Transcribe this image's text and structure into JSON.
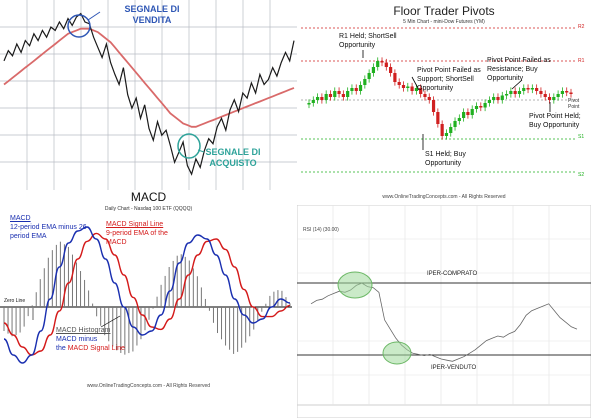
{
  "colors": {
    "price": "#1a1a1a",
    "ma": "#d96a6a",
    "sell": "#2f57b5",
    "buy": "#2fa39a",
    "grid": "#b8bcc4",
    "pivot_red": "#d02020",
    "pivot_green": "#20b020",
    "macd_blue": "#1a2fb0",
    "macd_red": "#d41a1a",
    "hist": "#777777",
    "rsi_circle": "#9fd99a"
  },
  "chart_data": [
    {
      "type": "line",
      "panel": "ma-crossover",
      "series": [
        {
          "values": [
            74,
            80,
            77,
            84,
            79,
            86,
            83,
            90,
            86,
            92,
            88,
            94,
            92,
            97,
            93,
            99,
            95,
            100,
            102,
            97,
            96,
            88,
            82,
            76,
            84,
            73,
            66,
            60,
            70,
            54,
            46,
            52,
            40,
            48,
            34,
            27,
            38,
            30,
            33,
            24,
            14,
            20,
            26,
            12,
            7,
            16,
            11,
            21,
            28,
            25,
            35,
            40,
            33,
            45,
            51,
            44,
            55,
            52,
            61,
            55,
            66,
            60,
            63,
            70,
            65,
            73,
            79,
            74,
            86
          ]
        },
        {
          "values": [
            60,
            62,
            64,
            66,
            68,
            70,
            72,
            74,
            76,
            78,
            80,
            82,
            84,
            86,
            88,
            90,
            91,
            92,
            93,
            93,
            93,
            92,
            91,
            89,
            87,
            85,
            82,
            79,
            76,
            73,
            70,
            67,
            64,
            61,
            58,
            55,
            52,
            49,
            46,
            43,
            41,
            39,
            37,
            36,
            35,
            35,
            36,
            37,
            38,
            39,
            40,
            41,
            42,
            43,
            44,
            45,
            46,
            47,
            48,
            49,
            50,
            51,
            52,
            53,
            54,
            55,
            56,
            57,
            58
          ]
        }
      ],
      "annotations": [
        "SEGNALE DI VENDITA",
        "SEGNALE DI ACQUISTO"
      ]
    },
    {
      "type": "bar",
      "panel": "pivots",
      "title": "Floor Trader Pivots",
      "subtitle": "5 Min Chart - mini-Dow Futures (YM)",
      "levels": [
        "R2",
        "R1",
        "PP",
        "S1",
        "S2"
      ],
      "level_values": [
        5,
        3.9,
        2.6,
        1.3,
        0.2
      ],
      "closes": [
        2.5,
        2.6,
        2.7,
        2.6,
        2.8,
        2.7,
        2.9,
        2.8,
        2.7,
        2.9,
        3.0,
        2.9,
        3.1,
        3.3,
        3.5,
        3.7,
        3.9,
        3.85,
        3.7,
        3.5,
        3.2,
        3.1,
        3.0,
        3.05,
        2.9,
        3.0,
        2.8,
        2.7,
        2.6,
        2.2,
        1.8,
        1.4,
        1.5,
        1.7,
        1.9,
        2.0,
        2.2,
        2.1,
        2.3,
        2.4,
        2.35,
        2.5,
        2.6,
        2.7,
        2.6,
        2.75,
        2.8,
        2.9,
        2.8,
        2.9,
        3.0,
        2.95,
        3.0,
        2.9,
        2.8,
        2.7,
        2.6,
        2.7,
        2.8,
        2.9,
        2.85,
        2.8
      ],
      "annotations": [
        "R1 Held; ShortSell Opportunity",
        "Pivot Point Failed as Support; ShortSell Opportunity",
        "Pivot Point Failed as Resistance; Buy Opportunity",
        "S1 Held; Buy Opportunity",
        "Pivot Point Held; Buy Opportunity",
        "Pivot Point"
      ],
      "footer": "www.OnlineTradingConcepts.com - All Rights Reserved"
    },
    {
      "type": "line",
      "panel": "macd",
      "title": "MACD",
      "subtitle": "Daily Chart - Nasdaq 100 ETF (QQQQ)",
      "series": [
        {
          "name": "MACD",
          "values": [
            -0.4,
            -0.6,
            -0.7,
            -0.6,
            -0.3,
            0.1,
            0.5,
            0.8,
            0.95,
            1.0,
            0.85,
            0.6,
            0.3,
            0.0,
            -0.25,
            -0.35,
            -0.3,
            -0.1,
            0.2,
            0.55,
            0.8,
            0.9,
            0.85,
            0.65,
            0.4,
            0.1,
            -0.1,
            -0.2,
            -0.15,
            0.0,
            0.1,
            0.05
          ]
        },
        {
          "name": "MACD Signal Line",
          "values": [
            -0.2,
            -0.35,
            -0.5,
            -0.6,
            -0.55,
            -0.35,
            -0.05,
            0.3,
            0.6,
            0.82,
            0.92,
            0.85,
            0.65,
            0.4,
            0.12,
            -0.1,
            -0.25,
            -0.28,
            -0.15,
            0.1,
            0.4,
            0.65,
            0.82,
            0.85,
            0.72,
            0.5,
            0.22,
            0.0,
            -0.12,
            -0.12,
            -0.05,
            0.02
          ]
        }
      ],
      "labels": {
        "macd_desc": "12-period EMA minus 26-period EMA",
        "signal_desc": "9-period EMA of the MACD",
        "hist_label": "MACD Histogram",
        "hist_desc1": "MACD minus",
        "hist_desc2": "the",
        "zero": "Zero Line"
      },
      "footer": "www.OnlineTradingConcepts.com - All Rights Reserved"
    },
    {
      "type": "line",
      "panel": "rsi",
      "subtitle": "RSI (14) (30.00)",
      "bands": [
        "IPER-COMPRATO",
        "IPER-VENDUTO"
      ],
      "values": [
        88,
        91,
        92,
        95,
        97,
        99,
        98,
        100,
        104,
        106,
        103,
        102,
        98,
        74,
        66,
        58,
        52,
        48,
        45,
        44,
        43,
        44,
        42,
        40,
        39,
        38,
        40,
        42,
        45,
        48,
        52,
        56,
        58,
        60,
        59,
        62,
        64,
        70,
        78,
        82,
        84,
        86,
        88,
        82,
        76,
        72,
        68,
        66
      ]
    }
  ]
}
